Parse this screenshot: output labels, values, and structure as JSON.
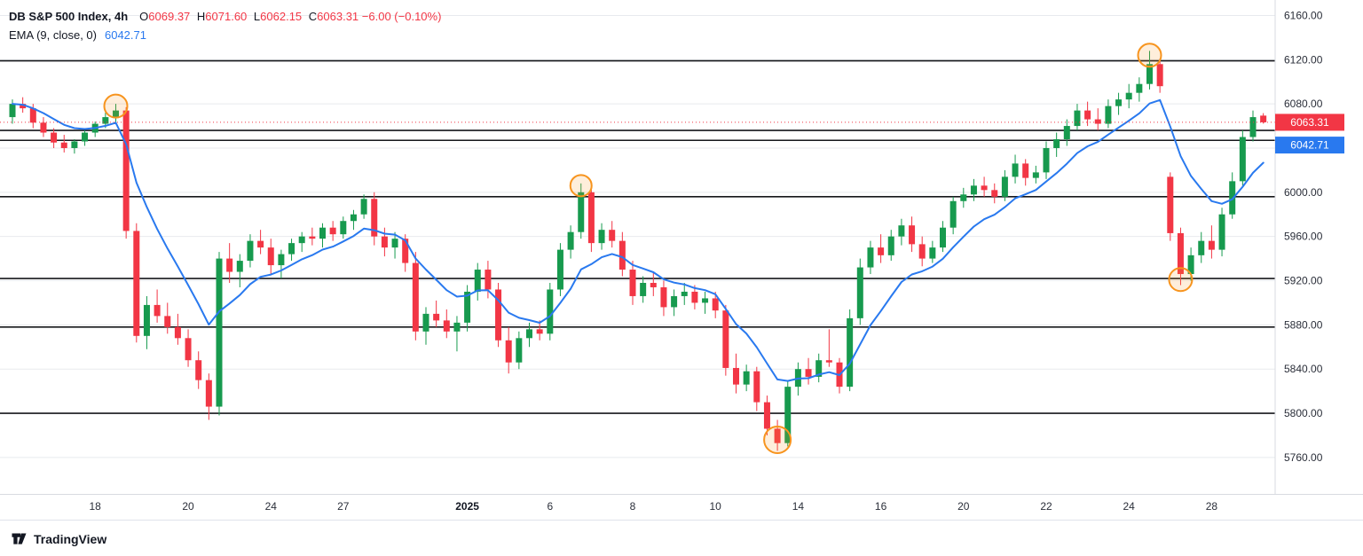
{
  "header": {
    "symbol_title": "DB S&P 500 Index, 4h",
    "ohlc": {
      "o_label": "O",
      "o": "6069.37",
      "h_label": "H",
      "h": "6071.60",
      "l_label": "L",
      "l": "6062.15",
      "c_label": "C",
      "c": "6063.31",
      "change": "−6.00 (−0.10%)"
    },
    "indicator": {
      "name": "EMA (9, close, 0)",
      "value": "6042.71"
    }
  },
  "footer": {
    "brand": "TradingView"
  },
  "colors": {
    "up": "#179a4e",
    "down": "#f23645",
    "ema": "#2979ef",
    "grid": "#e8eaee",
    "drawn_line": "#16171b",
    "last_price": "#f23645",
    "circle": "#f7941e",
    "axis_text": "#2a2e39",
    "axis_border": "#d8dbe0"
  },
  "chart_data": {
    "type": "candlestick",
    "symbol": "DB S&P 500 Index",
    "timeframe": "4h",
    "ohlc": {
      "open": 6069.37,
      "high": 6071.6,
      "low": 6062.15,
      "close": 6063.31,
      "change": -6.0,
      "change_pct": -0.1
    },
    "ema": {
      "length": 9,
      "source": "close",
      "offset": 0,
      "last_value": 6042.71
    },
    "last_price": 6063.31,
    "y_axis": {
      "top": 6174,
      "bottom": 5727,
      "ticks": [
        6160,
        6120,
        6080,
        6040,
        6000,
        5960,
        5920,
        5880,
        5840,
        5800,
        5760
      ]
    },
    "x_ticks": [
      {
        "label": "18",
        "bar": 8
      },
      {
        "label": "20",
        "bar": 17
      },
      {
        "label": "24",
        "bar": 25
      },
      {
        "label": "27",
        "bar": 32
      },
      {
        "label": "2025",
        "bar": 44,
        "bold": true
      },
      {
        "label": "6",
        "bar": 52
      },
      {
        "label": "8",
        "bar": 60
      },
      {
        "label": "10",
        "bar": 68
      },
      {
        "label": "14",
        "bar": 76
      },
      {
        "label": "16",
        "bar": 84
      },
      {
        "label": "20",
        "bar": 92
      },
      {
        "label": "22",
        "bar": 100
      },
      {
        "label": "24",
        "bar": 108
      },
      {
        "label": "28",
        "bar": 116
      }
    ],
    "price_lines": [
      6119,
      6056,
      6047,
      5996,
      5922,
      5878,
      5800
    ],
    "circles": [
      {
        "bar": 10,
        "price": 6078,
        "r": 13
      },
      {
        "bar": 55,
        "price": 6006,
        "r": 12
      },
      {
        "bar": 74,
        "price": 5776,
        "r": 15
      },
      {
        "bar": 110,
        "price": 6124,
        "r": 13
      },
      {
        "bar": 113,
        "price": 5921,
        "r": 13
      }
    ],
    "candles": [
      [
        6068,
        6084,
        6062,
        6080
      ],
      [
        6080,
        6086,
        6072,
        6076
      ],
      [
        6076,
        6080,
        6058,
        6063
      ],
      [
        6063,
        6068,
        6050,
        6054
      ],
      [
        6054,
        6058,
        6040,
        6045
      ],
      [
        6045,
        6052,
        6036,
        6040
      ],
      [
        6040,
        6048,
        6035,
        6046
      ],
      [
        6046,
        6056,
        6042,
        6054
      ],
      [
        6054,
        6064,
        6050,
        6062
      ],
      [
        6062,
        6072,
        6058,
        6068
      ],
      [
        6068,
        6080,
        6063,
        6074
      ],
      [
        6074,
        6077,
        5958,
        5965
      ],
      [
        5965,
        5972,
        5864,
        5870
      ],
      [
        5870,
        5906,
        5858,
        5898
      ],
      [
        5898,
        5912,
        5882,
        5888
      ],
      [
        5888,
        5900,
        5872,
        5878
      ],
      [
        5878,
        5890,
        5862,
        5868
      ],
      [
        5868,
        5876,
        5842,
        5848
      ],
      [
        5848,
        5856,
        5822,
        5830
      ],
      [
        5830,
        5836,
        5794,
        5806
      ],
      [
        5806,
        5946,
        5798,
        5940
      ],
      [
        5940,
        5954,
        5918,
        5928
      ],
      [
        5928,
        5944,
        5914,
        5938
      ],
      [
        5938,
        5962,
        5932,
        5956
      ],
      [
        5956,
        5966,
        5944,
        5950
      ],
      [
        5950,
        5958,
        5926,
        5934
      ],
      [
        5934,
        5948,
        5922,
        5944
      ],
      [
        5944,
        5958,
        5938,
        5954
      ],
      [
        5954,
        5964,
        5946,
        5960
      ],
      [
        5960,
        5968,
        5952,
        5958
      ],
      [
        5958,
        5972,
        5950,
        5968
      ],
      [
        5968,
        5974,
        5956,
        5962
      ],
      [
        5962,
        5978,
        5958,
        5974
      ],
      [
        5974,
        5984,
        5966,
        5980
      ],
      [
        5980,
        5998,
        5976,
        5994
      ],
      [
        5994,
        6000,
        5952,
        5960
      ],
      [
        5960,
        5968,
        5942,
        5950
      ],
      [
        5950,
        5964,
        5940,
        5958
      ],
      [
        5958,
        5962,
        5928,
        5936
      ],
      [
        5936,
        5946,
        5866,
        5874
      ],
      [
        5874,
        5896,
        5862,
        5890
      ],
      [
        5890,
        5902,
        5878,
        5884
      ],
      [
        5884,
        5894,
        5868,
        5874
      ],
      [
        5874,
        5888,
        5856,
        5882
      ],
      [
        5882,
        5916,
        5874,
        5910
      ],
      [
        5910,
        5936,
        5902,
        5930
      ],
      [
        5930,
        5938,
        5904,
        5912
      ],
      [
        5912,
        5918,
        5860,
        5866
      ],
      [
        5866,
        5878,
        5836,
        5846
      ],
      [
        5846,
        5874,
        5840,
        5868
      ],
      [
        5868,
        5882,
        5860,
        5876
      ],
      [
        5876,
        5884,
        5866,
        5872
      ],
      [
        5872,
        5918,
        5866,
        5912
      ],
      [
        5912,
        5954,
        5906,
        5948
      ],
      [
        5948,
        5970,
        5940,
        5964
      ],
      [
        5964,
        6008,
        5958,
        6000
      ],
      [
        6000,
        6004,
        5946,
        5954
      ],
      [
        5954,
        5972,
        5948,
        5966
      ],
      [
        5966,
        5974,
        5950,
        5956
      ],
      [
        5956,
        5964,
        5924,
        5930
      ],
      [
        5930,
        5938,
        5898,
        5906
      ],
      [
        5906,
        5924,
        5900,
        5918
      ],
      [
        5918,
        5928,
        5906,
        5914
      ],
      [
        5914,
        5920,
        5888,
        5896
      ],
      [
        5896,
        5912,
        5888,
        5906
      ],
      [
        5906,
        5918,
        5898,
        5910
      ],
      [
        5910,
        5916,
        5894,
        5900
      ],
      [
        5900,
        5910,
        5890,
        5904
      ],
      [
        5904,
        5910,
        5886,
        5893
      ],
      [
        5893,
        5898,
        5834,
        5841
      ],
      [
        5841,
        5854,
        5818,
        5826
      ],
      [
        5826,
        5844,
        5820,
        5838
      ],
      [
        5838,
        5842,
        5802,
        5810
      ],
      [
        5810,
        5816,
        5780,
        5786
      ],
      [
        5786,
        5794,
        5766,
        5773
      ],
      [
        5773,
        5830,
        5770,
        5824
      ],
      [
        5824,
        5846,
        5816,
        5840
      ],
      [
        5840,
        5850,
        5826,
        5833
      ],
      [
        5833,
        5854,
        5828,
        5848
      ],
      [
        5848,
        5876,
        5842,
        5846
      ],
      [
        5846,
        5850,
        5818,
        5824
      ],
      [
        5824,
        5894,
        5820,
        5886
      ],
      [
        5886,
        5940,
        5880,
        5932
      ],
      [
        5932,
        5956,
        5926,
        5950
      ],
      [
        5950,
        5962,
        5936,
        5943
      ],
      [
        5943,
        5966,
        5938,
        5960
      ],
      [
        5960,
        5976,
        5952,
        5970
      ],
      [
        5970,
        5978,
        5946,
        5953
      ],
      [
        5953,
        5960,
        5933,
        5940
      ],
      [
        5940,
        5956,
        5936,
        5950
      ],
      [
        5950,
        5974,
        5946,
        5968
      ],
      [
        5968,
        5996,
        5962,
        5992
      ],
      [
        5992,
        6004,
        5986,
        5998
      ],
      [
        5998,
        6012,
        5992,
        6006
      ],
      [
        6006,
        6014,
        5996,
        6002
      ],
      [
        6002,
        6008,
        5990,
        5996
      ],
      [
        5996,
        6020,
        5992,
        6014
      ],
      [
        6014,
        6034,
        6008,
        6026
      ],
      [
        6026,
        6030,
        6006,
        6013
      ],
      [
        6013,
        6024,
        6008,
        6018
      ],
      [
        6018,
        6046,
        6012,
        6040
      ],
      [
        6040,
        6054,
        6032,
        6048
      ],
      [
        6048,
        6066,
        6042,
        6060
      ],
      [
        6060,
        6080,
        6056,
        6074
      ],
      [
        6074,
        6082,
        6060,
        6066
      ],
      [
        6066,
        6076,
        6056,
        6062
      ],
      [
        6062,
        6084,
        6058,
        6078
      ],
      [
        6078,
        6090,
        6070,
        6084
      ],
      [
        6084,
        6098,
        6076,
        6090
      ],
      [
        6090,
        6104,
        6082,
        6098
      ],
      [
        6098,
        6128,
        6093,
        6116
      ],
      [
        6116,
        6121,
        6090,
        6096
      ],
      [
        6014,
        6018,
        5956,
        5963
      ],
      [
        5963,
        5968,
        5916,
        5926
      ],
      [
        5926,
        5950,
        5920,
        5943
      ],
      [
        5943,
        5964,
        5936,
        5956
      ],
      [
        5956,
        5970,
        5940,
        5948
      ],
      [
        5948,
        5986,
        5942,
        5980
      ],
      [
        5980,
        6018,
        5976,
        6010
      ],
      [
        6010,
        6056,
        6006,
        6050
      ],
      [
        6050,
        6074,
        6046,
        6068
      ],
      [
        6069.37,
        6071.6,
        6062.15,
        6063.31
      ]
    ]
  }
}
